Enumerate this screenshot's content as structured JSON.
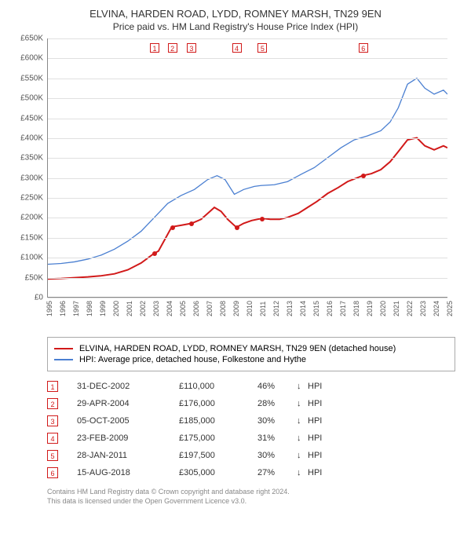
{
  "title_line1": "ELVINA, HARDEN ROAD, LYDD, ROMNEY MARSH, TN29 9EN",
  "title_line2": "Price paid vs. HM Land Registry's House Price Index (HPI)",
  "chart": {
    "type": "line",
    "background_color": "#ffffff",
    "grid_color": "#e0e0e0",
    "axis_color": "#888888",
    "title_fontsize": 13,
    "subtitle_fontsize": 12,
    "tick_fontsize": 10,
    "x_min": 1995,
    "x_max": 2025,
    "y_min": 0,
    "y_max": 650000,
    "y_tick_step": 50000,
    "y_ticks": [
      "£0",
      "£50K",
      "£100K",
      "£150K",
      "£200K",
      "£250K",
      "£300K",
      "£350K",
      "£400K",
      "£450K",
      "£500K",
      "£550K",
      "£600K",
      "£650K"
    ],
    "x_ticks": [
      1995,
      1996,
      1997,
      1998,
      1999,
      2000,
      2001,
      2002,
      2003,
      2004,
      2005,
      2006,
      2007,
      2008,
      2009,
      2010,
      2011,
      2012,
      2013,
      2014,
      2015,
      2016,
      2017,
      2018,
      2019,
      2020,
      2021,
      2022,
      2023,
      2024,
      2025
    ],
    "series": [
      {
        "id": "property",
        "label": "ELVINA, HARDEN ROAD, LYDD, ROMNEY MARSH, TN29 9EN (detached house)",
        "color": "#d11919",
        "line_width": 2,
        "points": [
          [
            1995,
            45000
          ],
          [
            1996,
            46000
          ],
          [
            1997,
            48000
          ],
          [
            1998,
            50000
          ],
          [
            1999,
            53000
          ],
          [
            2000,
            58000
          ],
          [
            2001,
            68000
          ],
          [
            2002,
            85000
          ],
          [
            2003.0,
            110000
          ],
          [
            2003.3,
            115000
          ],
          [
            2004.3,
            176000
          ],
          [
            2005.0,
            180000
          ],
          [
            2005.8,
            185000
          ],
          [
            2006.5,
            195000
          ],
          [
            2007.0,
            210000
          ],
          [
            2007.5,
            225000
          ],
          [
            2008.0,
            215000
          ],
          [
            2008.5,
            195000
          ],
          [
            2009.15,
            175000
          ],
          [
            2009.7,
            185000
          ],
          [
            2010.3,
            192000
          ],
          [
            2011.08,
            197500
          ],
          [
            2011.7,
            195000
          ],
          [
            2012.4,
            195000
          ],
          [
            2013.0,
            200000
          ],
          [
            2013.8,
            210000
          ],
          [
            2014.5,
            225000
          ],
          [
            2015.2,
            240000
          ],
          [
            2016.0,
            260000
          ],
          [
            2016.8,
            275000
          ],
          [
            2017.5,
            290000
          ],
          [
            2018.63,
            305000
          ],
          [
            2019.3,
            310000
          ],
          [
            2020.0,
            320000
          ],
          [
            2020.7,
            340000
          ],
          [
            2021.3,
            365000
          ],
          [
            2022.0,
            395000
          ],
          [
            2022.7,
            400000
          ],
          [
            2023.3,
            380000
          ],
          [
            2024.0,
            370000
          ],
          [
            2024.7,
            380000
          ],
          [
            2025.0,
            375000
          ]
        ]
      },
      {
        "id": "hpi",
        "label": "HPI: Average price, detached house, Folkestone and Hythe",
        "color": "#4a7fd1",
        "line_width": 1.3,
        "points": [
          [
            1995,
            82000
          ],
          [
            1996,
            84000
          ],
          [
            1997,
            88000
          ],
          [
            1998,
            95000
          ],
          [
            1999,
            105000
          ],
          [
            2000,
            120000
          ],
          [
            2001,
            140000
          ],
          [
            2002,
            165000
          ],
          [
            2003,
            200000
          ],
          [
            2004,
            235000
          ],
          [
            2005,
            255000
          ],
          [
            2006,
            270000
          ],
          [
            2007,
            295000
          ],
          [
            2007.7,
            305000
          ],
          [
            2008.3,
            295000
          ],
          [
            2009,
            258000
          ],
          [
            2009.7,
            270000
          ],
          [
            2010.5,
            278000
          ],
          [
            2011,
            280000
          ],
          [
            2012,
            282000
          ],
          [
            2013,
            290000
          ],
          [
            2014,
            308000
          ],
          [
            2015,
            325000
          ],
          [
            2016,
            350000
          ],
          [
            2017,
            375000
          ],
          [
            2018,
            395000
          ],
          [
            2019,
            405000
          ],
          [
            2020,
            418000
          ],
          [
            2020.7,
            440000
          ],
          [
            2021.3,
            475000
          ],
          [
            2022,
            535000
          ],
          [
            2022.7,
            550000
          ],
          [
            2023.3,
            525000
          ],
          [
            2024,
            510000
          ],
          [
            2024.7,
            520000
          ],
          [
            2025,
            510000
          ]
        ]
      }
    ],
    "event_markers": [
      {
        "n": "1",
        "year": 2003.0,
        "color": "#d11919"
      },
      {
        "n": "2",
        "year": 2004.33,
        "color": "#d11919"
      },
      {
        "n": "3",
        "year": 2005.76,
        "color": "#d11919"
      },
      {
        "n": "4",
        "year": 2009.15,
        "color": "#d11919"
      },
      {
        "n": "5",
        "year": 2011.08,
        "color": "#d11919"
      },
      {
        "n": "6",
        "year": 2018.63,
        "color": "#d11919"
      }
    ],
    "sale_points": [
      {
        "year": 2003.0,
        "value": 110000,
        "color": "#d11919"
      },
      {
        "year": 2004.33,
        "value": 176000,
        "color": "#d11919"
      },
      {
        "year": 2005.76,
        "value": 185000,
        "color": "#d11919"
      },
      {
        "year": 2009.15,
        "value": 175000,
        "color": "#d11919"
      },
      {
        "year": 2011.08,
        "value": 197500,
        "color": "#d11919"
      },
      {
        "year": 2018.63,
        "value": 305000,
        "color": "#d11919"
      }
    ]
  },
  "legend": {
    "border_color": "#aaaaaa",
    "items": [
      {
        "color": "#d11919",
        "label": "ELVINA, HARDEN ROAD, LYDD, ROMNEY MARSH, TN29 9EN (detached house)"
      },
      {
        "color": "#4a7fd1",
        "label": "HPI: Average price, detached house, Folkestone and Hythe"
      }
    ]
  },
  "transactions": [
    {
      "n": "1",
      "date": "31-DEC-2002",
      "price": "£110,000",
      "pct": "46%",
      "arrow": "↓",
      "hpi": "HPI",
      "color": "#d11919"
    },
    {
      "n": "2",
      "date": "29-APR-2004",
      "price": "£176,000",
      "pct": "28%",
      "arrow": "↓",
      "hpi": "HPI",
      "color": "#d11919"
    },
    {
      "n": "3",
      "date": "05-OCT-2005",
      "price": "£185,000",
      "pct": "30%",
      "arrow": "↓",
      "hpi": "HPI",
      "color": "#d11919"
    },
    {
      "n": "4",
      "date": "23-FEB-2009",
      "price": "£175,000",
      "pct": "31%",
      "arrow": "↓",
      "hpi": "HPI",
      "color": "#d11919"
    },
    {
      "n": "5",
      "date": "28-JAN-2011",
      "price": "£197,500",
      "pct": "30%",
      "arrow": "↓",
      "hpi": "HPI",
      "color": "#d11919"
    },
    {
      "n": "6",
      "date": "15-AUG-2018",
      "price": "£305,000",
      "pct": "27%",
      "arrow": "↓",
      "hpi": "HPI",
      "color": "#d11919"
    }
  ],
  "footnote_line1": "Contains HM Land Registry data © Crown copyright and database right 2024.",
  "footnote_line2": "This data is licensed under the Open Government Licence v3.0."
}
